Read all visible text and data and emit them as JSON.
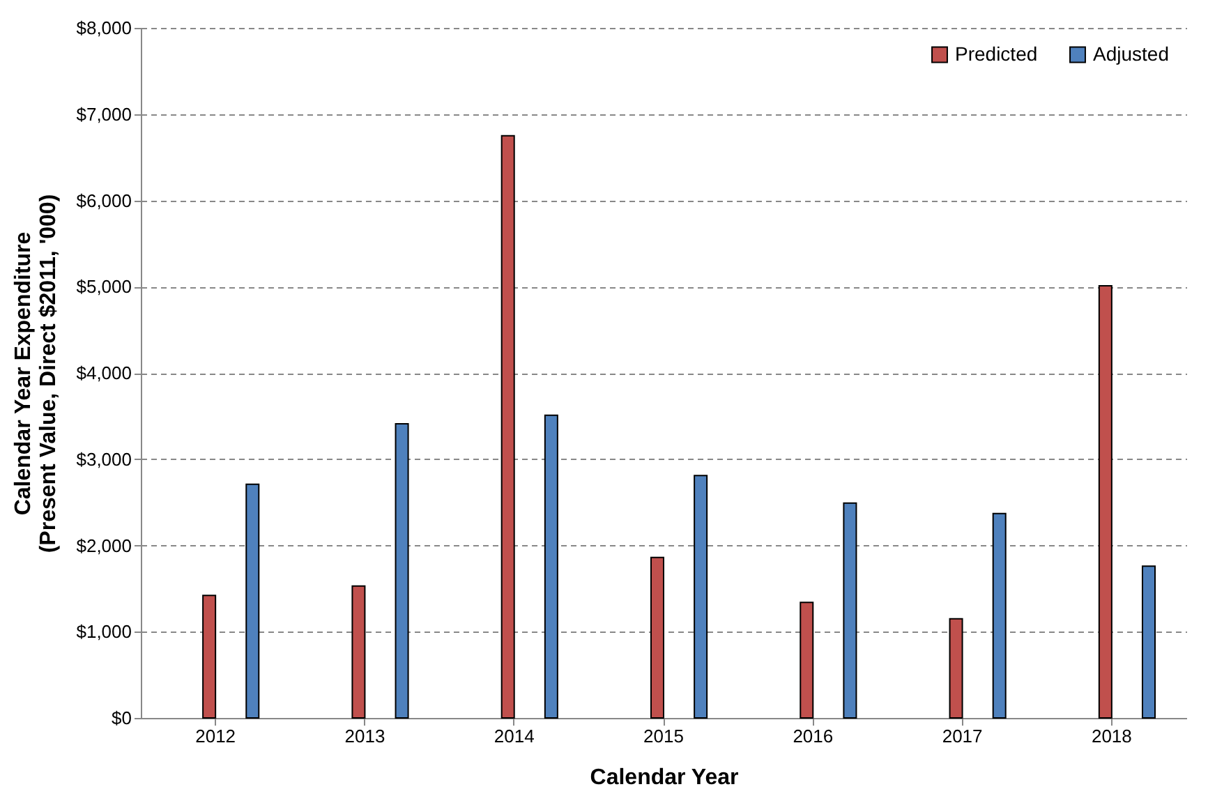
{
  "chart_data": {
    "type": "bar",
    "xlabel": "Calendar Year",
    "ylabel": "Calendar Year Expenditure\n(Present Value, Direct $2011, '000)",
    "categories": [
      "2012",
      "2013",
      "2014",
      "2015",
      "2016",
      "2017",
      "2018"
    ],
    "series": [
      {
        "name": "Predicted",
        "color": "#c0504d",
        "values": [
          1420,
          1530,
          6750,
          1860,
          1340,
          1150,
          5010
        ]
      },
      {
        "name": "Adjusted",
        "color": "#4f81bd",
        "values": [
          2710,
          3410,
          3510,
          2810,
          2490,
          2370,
          1760
        ]
      }
    ],
    "ylim": [
      0,
      8000
    ],
    "yticks": [
      {
        "value": 0,
        "label": "$0"
      },
      {
        "value": 1000,
        "label": "$1,000"
      },
      {
        "value": 2000,
        "label": "$2,000"
      },
      {
        "value": 3000,
        "label": "$3,000"
      },
      {
        "value": 4000,
        "label": "$4,000"
      },
      {
        "value": 5000,
        "label": "$5,000"
      },
      {
        "value": 6000,
        "label": "$6,000"
      },
      {
        "value": 7000,
        "label": "$7,000"
      },
      {
        "value": 8000,
        "label": "$8,000"
      }
    ],
    "grid": "y",
    "legend": "top right"
  }
}
